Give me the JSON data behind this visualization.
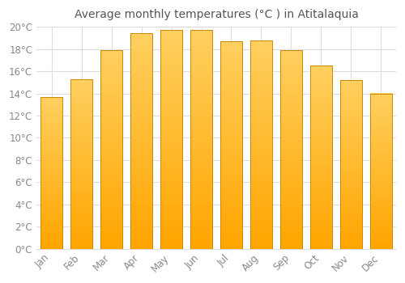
{
  "title": "Average monthly temperatures (°C ) in Atitalaquia",
  "months": [
    "Jan",
    "Feb",
    "Mar",
    "Apr",
    "May",
    "Jun",
    "Jul",
    "Aug",
    "Sep",
    "Oct",
    "Nov",
    "Dec"
  ],
  "values": [
    13.7,
    15.3,
    17.9,
    19.4,
    19.7,
    19.7,
    18.7,
    18.8,
    17.9,
    16.5,
    15.2,
    14.0
  ],
  "bar_color_top": "#FFD060",
  "bar_color_bottom": "#FFA500",
  "bar_edge_color": "#CC8800",
  "background_color": "#FFFFFF",
  "grid_color": "#DDDDDD",
  "text_color": "#888888",
  "title_color": "#555555",
  "ylim": [
    0,
    20
  ],
  "ytick_step": 2,
  "title_fontsize": 10,
  "tick_fontsize": 8.5
}
